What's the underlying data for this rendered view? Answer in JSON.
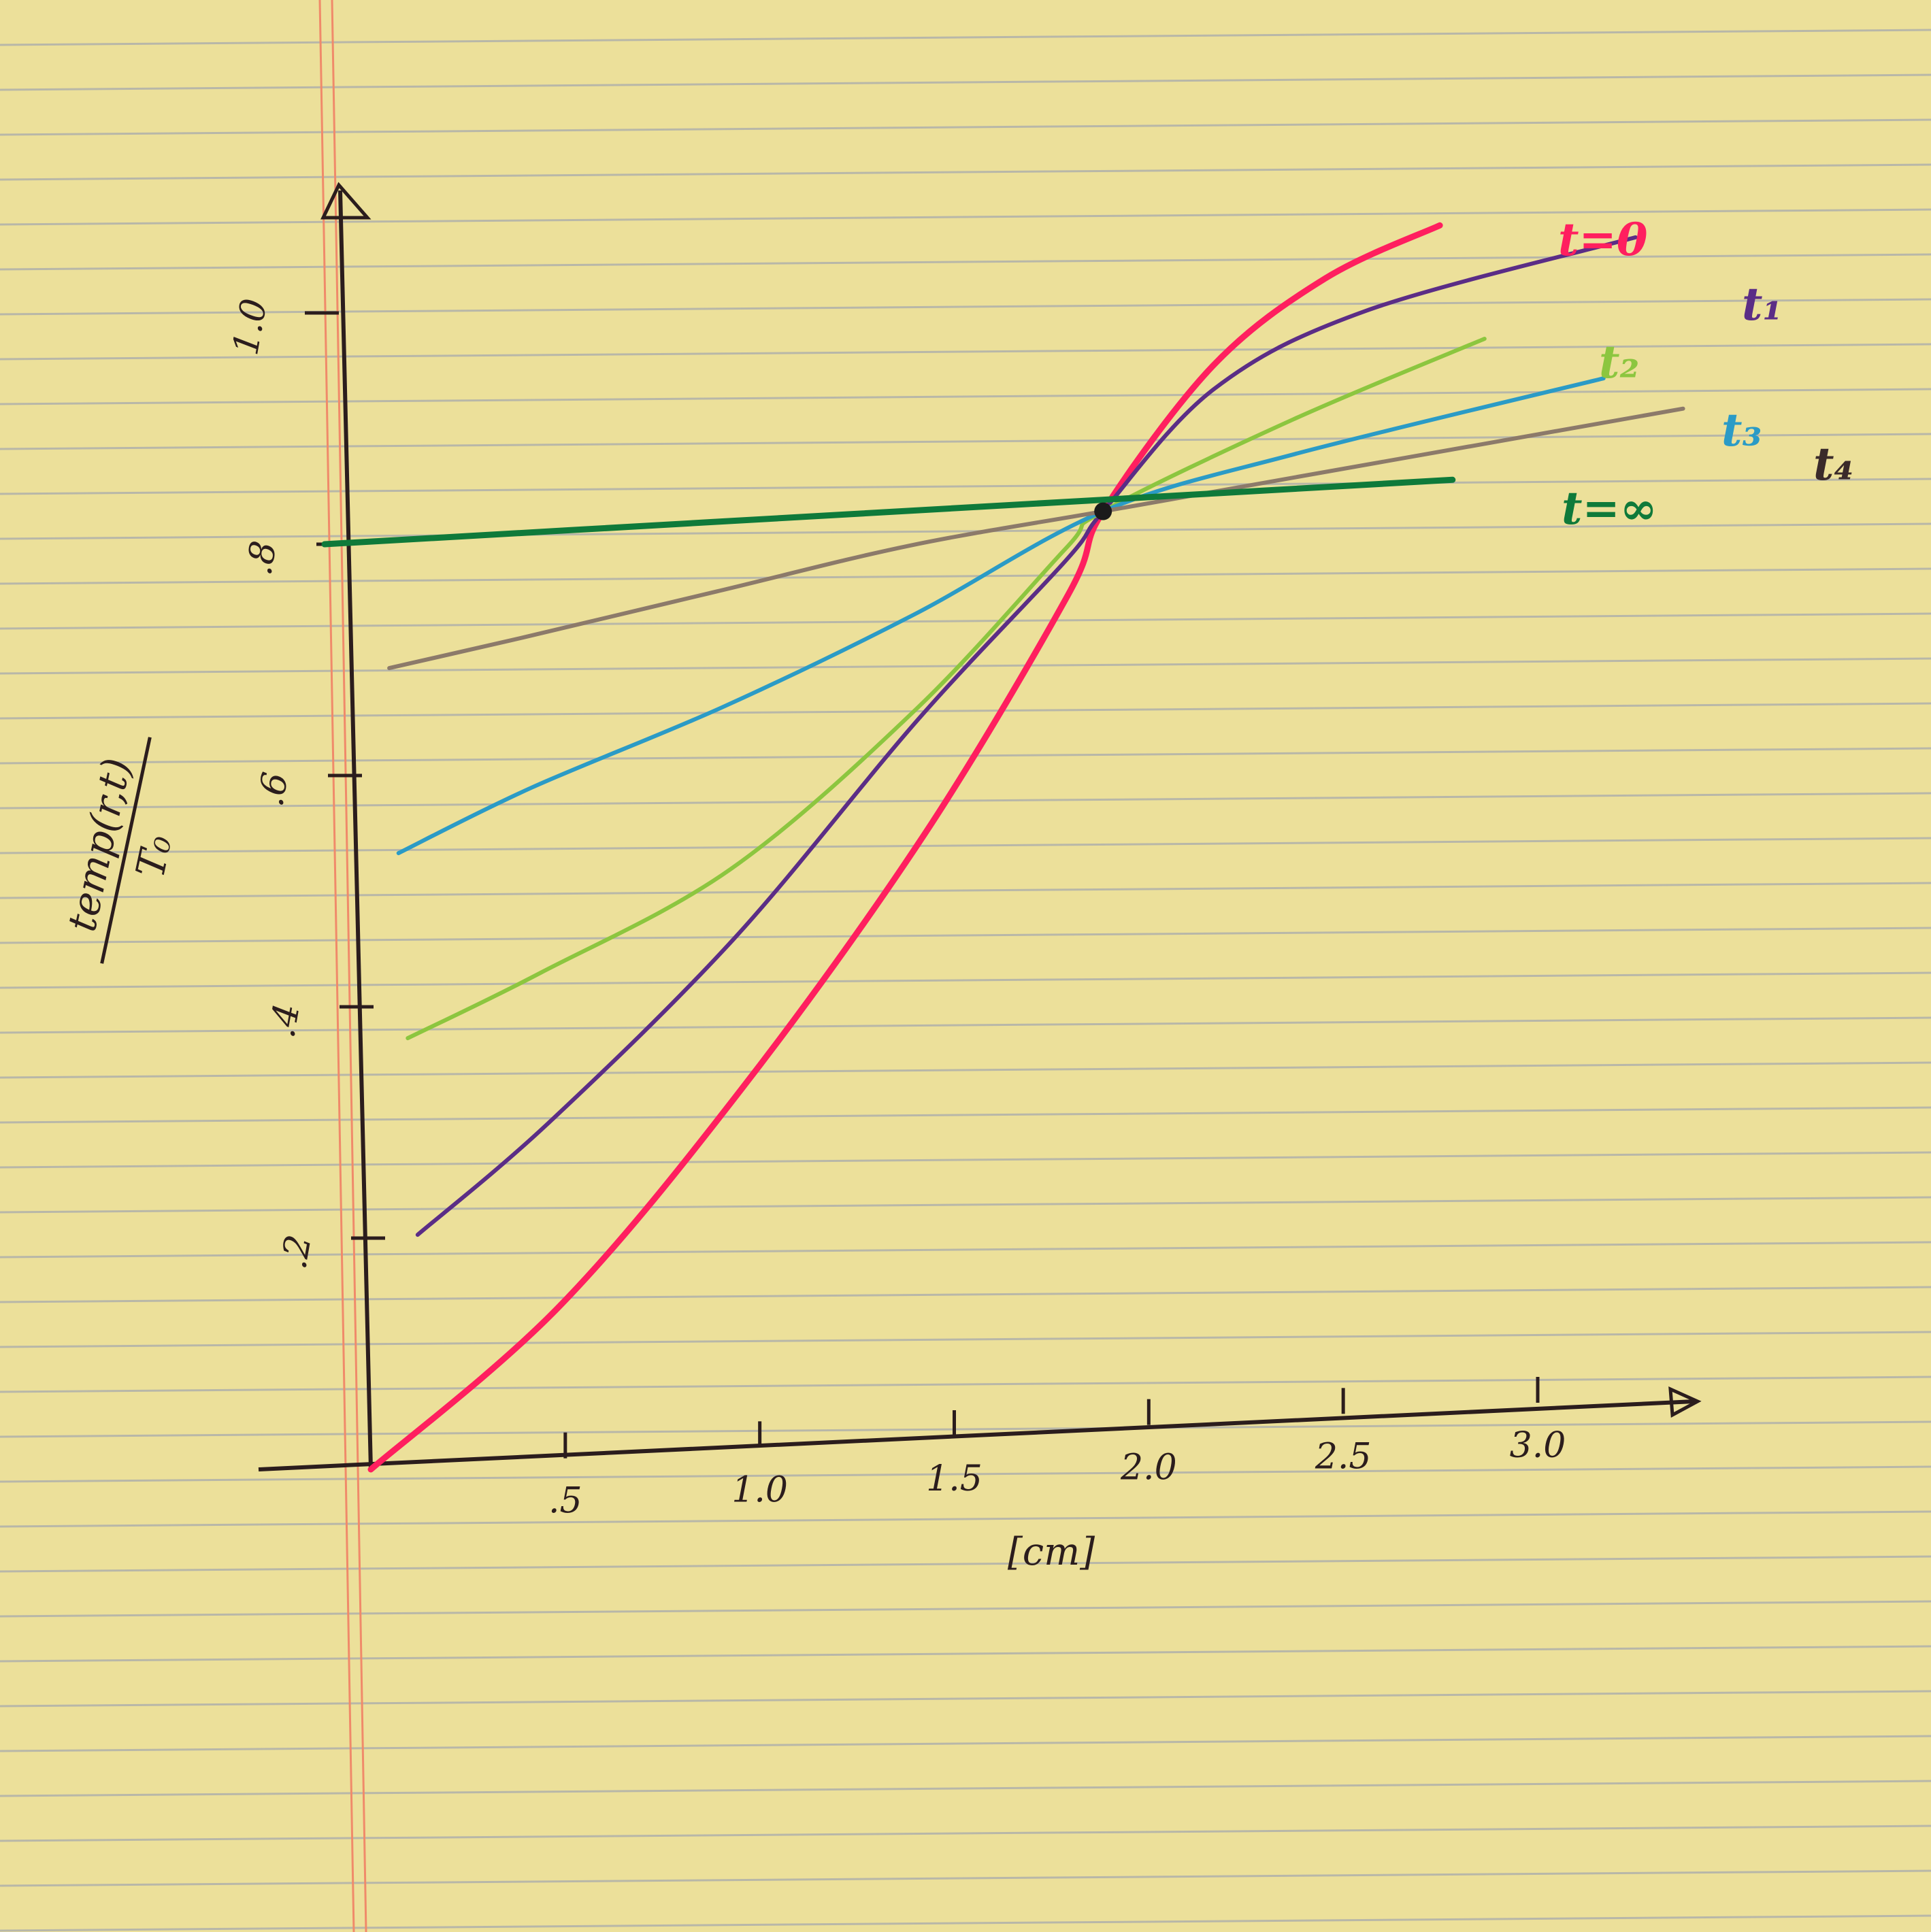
{
  "chart_data": {
    "type": "line",
    "title": "",
    "xlabel": "[cm]",
    "ylabel": "temp(r,t) / T₀",
    "ylabel_numerator": "temp(r,t)",
    "ylabel_denominator": "T₀",
    "xlim": [
      0,
      3.4
    ],
    "ylim": [
      0,
      1.0
    ],
    "x_ticks": [
      {
        "value": 0.5,
        "label": ".5"
      },
      {
        "value": 1.0,
        "label": "1.0"
      },
      {
        "value": 1.5,
        "label": "1.5"
      },
      {
        "value": 2.0,
        "label": "2.0"
      },
      {
        "value": 2.5,
        "label": "2.5"
      },
      {
        "value": 3.0,
        "label": "3.0"
      }
    ],
    "y_ticks": [
      {
        "value": 0.2,
        "label": ".2"
      },
      {
        "value": 0.4,
        "label": ".4"
      },
      {
        "value": 0.6,
        "label": ".6"
      },
      {
        "value": 0.8,
        "label": ".8"
      },
      {
        "value": 1.0,
        "label": "1.0"
      }
    ],
    "grid": false,
    "series": [
      {
        "name": "t=0",
        "color": "#ff1f5f",
        "x": [
          0,
          0.5,
          1.0,
          1.5,
          1.9,
          2.0,
          2.3,
          2.6,
          2.9
        ],
        "y": [
          0,
          0.13,
          0.31,
          0.52,
          0.72,
          0.79,
          0.91,
          0.98,
          1.02
        ]
      },
      {
        "name": "t₁",
        "color": "#5b2d86",
        "x": [
          0.15,
          0.5,
          1.0,
          1.5,
          1.9,
          2.0,
          2.3,
          2.7,
          3.4
        ],
        "y": [
          0.2,
          0.29,
          0.44,
          0.62,
          0.75,
          0.79,
          0.89,
          0.95,
          1.0
        ]
      },
      {
        "name": "t₂",
        "color": "#8cc63f",
        "x": [
          0.15,
          0.5,
          1.0,
          1.5,
          1.9,
          2.0,
          2.5,
          3.0
        ],
        "y": [
          0.37,
          0.42,
          0.5,
          0.63,
          0.76,
          0.79,
          0.86,
          0.92
        ]
      },
      {
        "name": "t₃",
        "color": "#2b9bc6",
        "x": [
          0.15,
          0.5,
          1.0,
          1.5,
          2.0,
          2.5,
          3.3
        ],
        "y": [
          0.53,
          0.58,
          0.64,
          0.71,
          0.79,
          0.83,
          0.88
        ]
      },
      {
        "name": "t₄",
        "color": "#8c7a6a",
        "x": [
          0.15,
          0.5,
          1.0,
          1.5,
          2.0,
          2.5,
          3.5
        ],
        "y": [
          0.69,
          0.71,
          0.74,
          0.77,
          0.79,
          0.81,
          0.85
        ]
      },
      {
        "name": "t=∞",
        "color": "#0f7a3a",
        "x": [
          0,
          1.0,
          2.0,
          2.9
        ],
        "y": [
          0.8,
          0.8,
          0.8,
          0.8
        ]
      }
    ]
  }
}
